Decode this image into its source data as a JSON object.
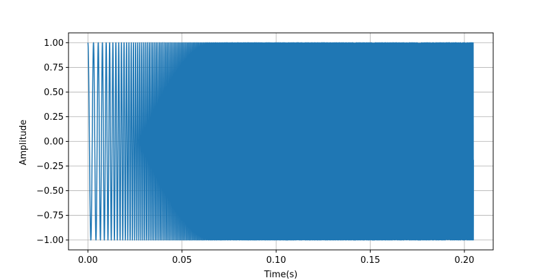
{
  "chart_data": {
    "type": "line",
    "title": "",
    "xlabel": "Time(s)",
    "ylabel": "Amplitude",
    "xlim": [
      -0.0103,
      0.2153
    ],
    "ylim": [
      -1.1,
      1.1
    ],
    "grid": true,
    "signal": {
      "kind": "linear-chirp",
      "t_end": 0.2048,
      "f_start_hz": 300,
      "f_end_hz": 5000,
      "amplitude": 1.0
    },
    "x_ticks": [
      "0.00",
      "0.05",
      "0.10",
      "0.15",
      "0.20"
    ],
    "x_tick_values": [
      0.0,
      0.05,
      0.1,
      0.15,
      0.2
    ],
    "y_ticks": [
      "1.00",
      "0.75",
      "0.50",
      "0.25",
      "0.00",
      "−0.25",
      "−0.50",
      "−0.75",
      "−1.00"
    ],
    "y_tick_values": [
      1.0,
      0.75,
      0.5,
      0.25,
      0.0,
      -0.25,
      -0.5,
      -0.75,
      -1.0
    ],
    "line_color": "#1f77b4",
    "grid_color": "#b0b0b0"
  }
}
